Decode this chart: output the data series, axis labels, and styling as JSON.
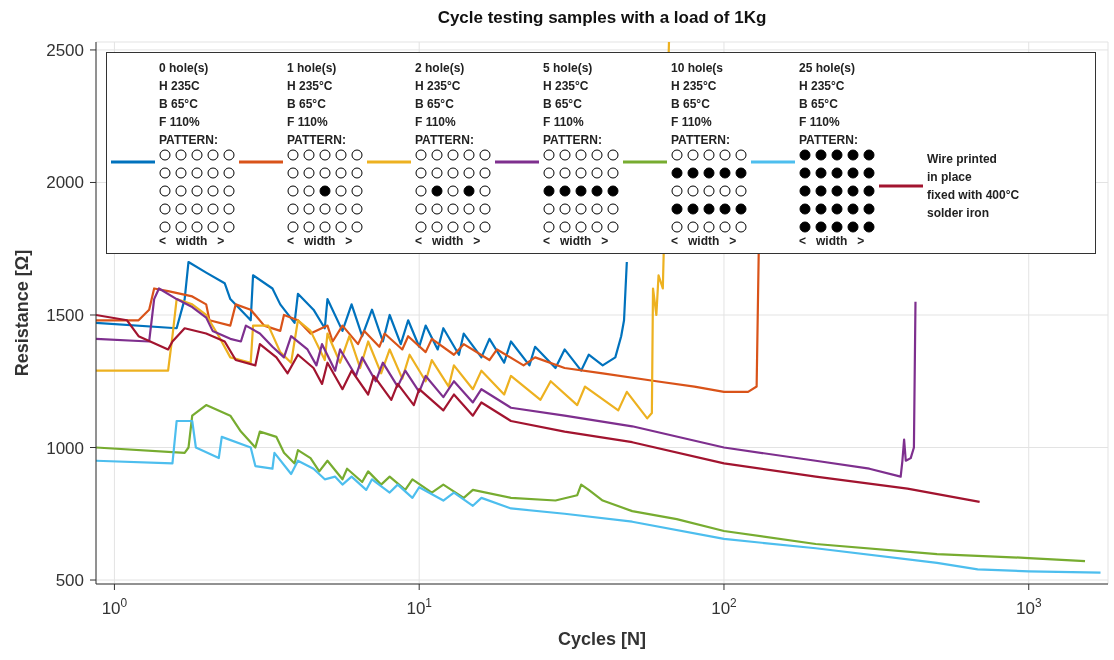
{
  "chart_data": {
    "type": "line",
    "title": "Cycle testing samples with a load of 1Kg",
    "xlabel": "Cycles [N]",
    "ylabel": "Resistance [Ω]",
    "log": "x",
    "grid": true,
    "legend": "top",
    "marker": "none",
    "line_style": "solid",
    "xlim": [
      0.87,
      1820
    ],
    "xticks": [
      {
        "value": 1,
        "label": "10$^{0}$"
      },
      {
        "value": 10,
        "label": "10$^{1}$"
      },
      {
        "value": 100,
        "label": "10$^{2}$"
      },
      {
        "value": 1000,
        "label": "10$^{3}$"
      }
    ],
    "ylim": [
      485,
      2530
    ],
    "yticks": [
      500,
      1000,
      1500,
      2000,
      2500
    ],
    "series": [
      {
        "name": "0 hole(s)\nH 235C\nB 65°C\nF 110%\nPATTERN:\n<   width   >",
        "color": "#0072bd",
        "x": [
          0.87,
          1.6,
          1.7,
          1.75,
          2.0,
          2.3,
          2.4,
          2.8,
          2.85,
          3.3,
          3.5,
          3.9,
          4.0,
          4.5,
          4.9,
          5.0,
          5.6,
          6.0,
          6.5,
          7.0,
          7.6,
          8.0,
          8.7,
          9.2,
          10,
          10.5,
          11.5,
          12,
          13.5,
          14,
          16,
          17,
          19,
          20,
          23,
          24,
          28,
          30,
          34,
          36,
          40,
          44,
          46,
          47,
          48
        ],
        "values": [
          1470,
          1450,
          1560,
          1700,
          1660,
          1620,
          1560,
          1480,
          1650,
          1600,
          1540,
          1470,
          1580,
          1520,
          1450,
          1560,
          1440,
          1540,
          1420,
          1520,
          1400,
          1500,
          1390,
          1480,
          1380,
          1460,
          1370,
          1450,
          1350,
          1430,
          1340,
          1410,
          1320,
          1400,
          1310,
          1380,
          1300,
          1370,
          1290,
          1350,
          1310,
          1340,
          1420,
          1480,
          1700
        ]
      },
      {
        "name": "1 hole(s)\nH 235°C\nB 65°C\nF 110%\nPATTERN:\n<   width   >",
        "color": "#d95319",
        "x": [
          0.87,
          1.2,
          1.3,
          1.35,
          1.5,
          1.8,
          2.0,
          2.05,
          2.4,
          2.5,
          2.8,
          3.1,
          3.5,
          3.6,
          4.0,
          4.4,
          5.0,
          5.2,
          5.6,
          6.3,
          6.6,
          7.4,
          7.7,
          8.8,
          9.2,
          10.5,
          11,
          13,
          14,
          17,
          18,
          22,
          24,
          30,
          40,
          60,
          80,
          100,
          120,
          128,
          130
        ],
        "values": [
          1480,
          1480,
          1520,
          1600,
          1590,
          1570,
          1540,
          1480,
          1460,
          1540,
          1520,
          1460,
          1440,
          1500,
          1480,
          1430,
          1460,
          1400,
          1460,
          1390,
          1440,
          1380,
          1430,
          1370,
          1420,
          1360,
          1410,
          1350,
          1390,
          1330,
          1370,
          1310,
          1340,
          1300,
          1280,
          1250,
          1230,
          1210,
          1210,
          1230,
          1730
        ]
      },
      {
        "name": "2 hole(s)\nH 235°C\nB 65°C\nF 110%\nPATTERN:\n<   width   >",
        "color": "#edb120",
        "x": [
          0.87,
          1.5,
          1.55,
          1.6,
          1.8,
          2.0,
          2.2,
          2.4,
          2.8,
          2.85,
          3.2,
          3.5,
          3.8,
          4.0,
          4.4,
          4.9,
          5.0,
          5.5,
          5.9,
          6.4,
          6.8,
          7.5,
          8.0,
          8.8,
          9.3,
          10.5,
          11,
          12.5,
          13,
          15,
          16,
          19,
          20,
          25,
          27,
          33,
          35,
          45,
          48,
          56,
          58,
          58.5,
          60,
          61,
          63,
          66
        ],
        "values": [
          1290,
          1290,
          1420,
          1560,
          1540,
          1500,
          1420,
          1340,
          1320,
          1460,
          1460,
          1360,
          1320,
          1480,
          1440,
          1330,
          1430,
          1320,
          1420,
          1300,
          1400,
          1280,
          1370,
          1260,
          1350,
          1250,
          1330,
          1230,
          1310,
          1220,
          1290,
          1200,
          1270,
          1180,
          1250,
          1160,
          1230,
          1140,
          1210,
          1110,
          1130,
          1600,
          1500,
          1650,
          1600,
          2530
        ]
      },
      {
        "name": "5 hole(s)\nH 235°C\nB 65°C\nF 110%\nPATTERN:\n<   width   >",
        "color": "#7e2f8e",
        "x": [
          0.87,
          1.3,
          1.35,
          1.4,
          1.6,
          1.8,
          2.0,
          2.1,
          2.4,
          2.6,
          2.7,
          3.0,
          3.3,
          3.6,
          3.8,
          4.3,
          4.6,
          4.8,
          5.3,
          5.5,
          6.2,
          6.5,
          7.2,
          7.6,
          8.5,
          9,
          10,
          10.5,
          12,
          13,
          15,
          16,
          20,
          30,
          50,
          100,
          200,
          300,
          380,
          385,
          390,
          395,
          410,
          420,
          425
        ],
        "values": [
          1410,
          1400,
          1560,
          1600,
          1560,
          1530,
          1490,
          1440,
          1410,
          1400,
          1460,
          1430,
          1380,
          1340,
          1420,
          1370,
          1310,
          1390,
          1290,
          1370,
          1270,
          1340,
          1250,
          1320,
          1230,
          1290,
          1210,
          1270,
          1190,
          1250,
          1170,
          1220,
          1150,
          1120,
          1080,
          1000,
          950,
          920,
          890,
          950,
          1030,
          950,
          960,
          1000,
          1550
        ]
      },
      {
        "name": "10 hole(s\nH 235°C\nB 65°C\nF 110%\nPATTERN:\n<   width   >",
        "color": "#77ac30",
        "x": [
          0.87,
          1.7,
          1.75,
          1.8,
          2.0,
          2.4,
          2.6,
          2.9,
          3.0,
          3.4,
          3.6,
          3.9,
          4.0,
          4.4,
          4.7,
          5.0,
          5.6,
          5.8,
          6.5,
          6.8,
          7.5,
          8.0,
          9,
          9.5,
          11,
          12,
          14,
          15,
          20,
          28,
          33,
          34,
          36,
          40,
          50,
          70,
          100,
          200,
          500,
          1000,
          1530
        ],
        "values": [
          1000,
          980,
          1000,
          1120,
          1160,
          1120,
          1060,
          1000,
          1060,
          1040,
          980,
          940,
          990,
          960,
          910,
          950,
          880,
          920,
          870,
          910,
          860,
          890,
          840,
          880,
          830,
          860,
          810,
          840,
          810,
          800,
          820,
          860,
          840,
          800,
          760,
          730,
          685,
          636,
          598,
          583,
          571
        ]
      },
      {
        "name": "25 hole(s)\nH 235°C\nB 65°C\nF 110%\nPATTERN:\n<   width   >",
        "color": "#4dbeee",
        "x": [
          0.87,
          1.55,
          1.6,
          1.8,
          1.85,
          2.2,
          2.25,
          2.8,
          2.9,
          3.3,
          3.35,
          3.8,
          4.0,
          4.5,
          4.9,
          5.3,
          5.6,
          6.0,
          6.7,
          7.0,
          8.0,
          8.5,
          9.5,
          10,
          12,
          13,
          15,
          16,
          20,
          30,
          50,
          100,
          200,
          500,
          680,
          1000,
          1720
        ],
        "values": [
          950,
          940,
          1100,
          1100,
          1000,
          960,
          1040,
          1000,
          930,
          920,
          980,
          900,
          950,
          920,
          880,
          890,
          860,
          890,
          840,
          880,
          830,
          860,
          810,
          850,
          800,
          830,
          780,
          810,
          770,
          750,
          720,
          655,
          620,
          565,
          540,
          533,
          528
        ]
      },
      {
        "name": "Wire printed\nin place\nfixed with 400°C\nsolder iron",
        "color": "#a2142f",
        "x": [
          0.87,
          1.1,
          1.2,
          1.5,
          1.55,
          1.7,
          2.0,
          2.3,
          2.5,
          2.9,
          3.0,
          3.4,
          3.7,
          4.0,
          4.5,
          4.8,
          5.0,
          5.6,
          6.0,
          6.8,
          7.1,
          8.1,
          8.5,
          9.6,
          10,
          12,
          13,
          15,
          16,
          20,
          30,
          50,
          100,
          200,
          400,
          690
        ],
        "values": [
          1500,
          1480,
          1420,
          1370,
          1400,
          1450,
          1430,
          1400,
          1330,
          1310,
          1390,
          1340,
          1280,
          1350,
          1300,
          1240,
          1320,
          1220,
          1290,
          1200,
          1270,
          1180,
          1240,
          1160,
          1220,
          1140,
          1200,
          1120,
          1170,
          1100,
          1060,
          1020,
          940,
          890,
          845,
          795
        ]
      }
    ]
  }
}
